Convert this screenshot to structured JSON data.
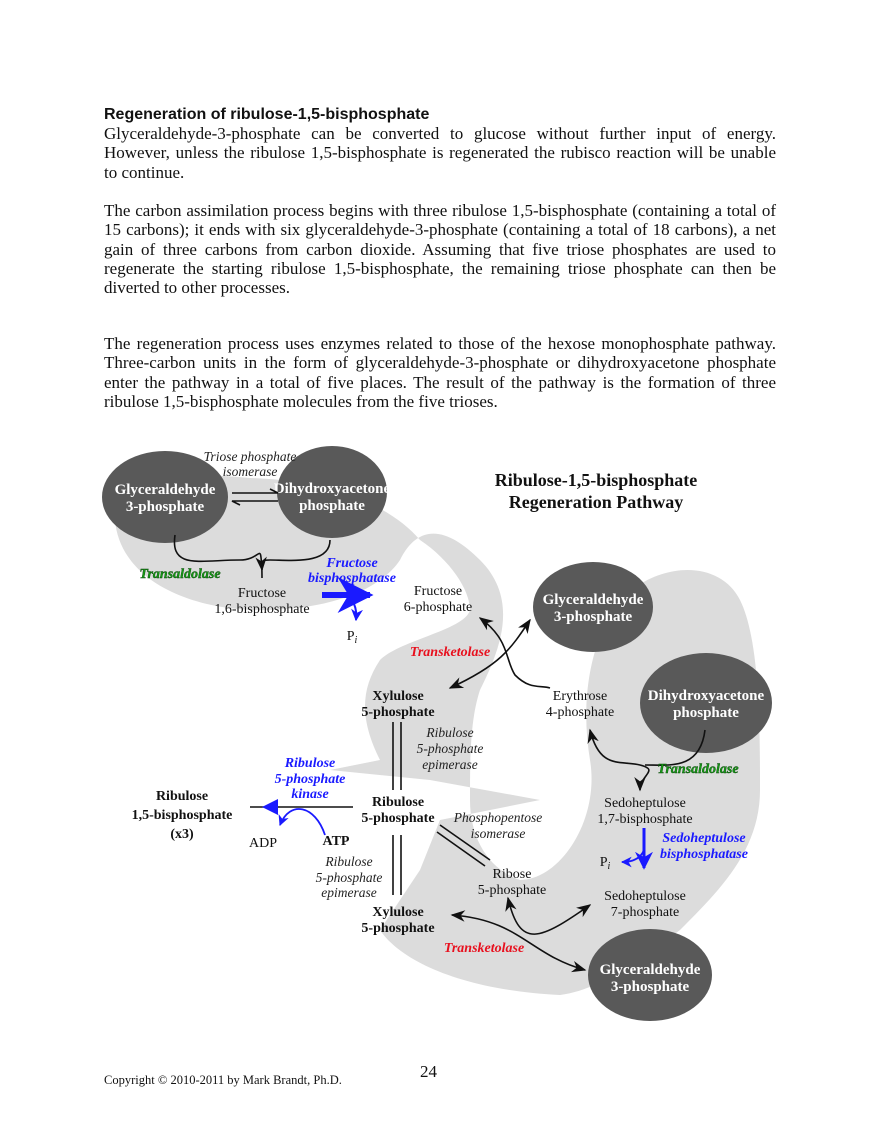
{
  "heading": "Regeneration of ribulose-1,5-bisphosphate",
  "paragraphs": [
    "Glyceraldehyde-3-phosphate can be converted to glucose without further input of energy. However, unless the ribulose 1,5-bisphosphate is regenerated the rubisco reaction will be unable to continue.",
    "The carbon assimilation process begins with three ribulose 1,5-bisphosphate (containing a total of 15 carbons); it ends with six glyceraldehyde-3-phosphate (containing a total of 18 carbons), a net gain of three carbons from carbon dioxide. Assuming that five triose phosphates are used to regenerate the starting ribulose 1,5-bisphosphate, the remaining triose phosphate can then be diverted to other processes.",
    "The regeneration process uses enzymes related to those of the hexose monophosphate pathway. Three-carbon units in the form of glyceraldehyde-3-phosphate or dihydroxyacetone phosphate enter the pathway in a total of five places. The result of the pathway is the formation of three ribulose 1,5-bisphosphate molecules from the five trioses."
  ],
  "diagram": {
    "title": [
      "Ribulose-1,5-bisphosphate",
      "Regeneration Pathway"
    ],
    "colors": {
      "ellipse": "#595959",
      "background": "#dcdcdc",
      "blue": "#1a1aff",
      "red": "#e8101e",
      "green": "#169a16"
    },
    "ellipses": {
      "g3p_top": [
        "Glyceraldehyde",
        "3-phosphate"
      ],
      "dhap_top": [
        "Dihydroxyacetone",
        "phosphate"
      ],
      "g3p_right": [
        "Glyceraldehyde",
        "3-phosphate"
      ],
      "dhap_right": [
        "Dihydroxyacetone",
        "phosphate"
      ],
      "g3p_bottom": [
        "Glyceraldehyde",
        "3-phosphate"
      ]
    },
    "molecules": {
      "f16bp": [
        "Fructose",
        "1,6-bisphosphate"
      ],
      "f6p": [
        "Fructose",
        "6-phosphate"
      ],
      "pi1": "P",
      "pi2": "P",
      "pi_sub": "i",
      "xu5p_top": [
        "Xylulose",
        "5-phosphate"
      ],
      "e4p": [
        "Erythrose",
        "4-phosphate"
      ],
      "ru5p": [
        "Ribulose",
        "5-phosphate"
      ],
      "rubp": [
        "Ribulose",
        "1,5-bisphosphate",
        "(x3)"
      ],
      "adp": "ADP",
      "atp": "ATP",
      "r5p": [
        "Ribose",
        "5-phosphate"
      ],
      "xu5p_bottom": [
        "Xylulose",
        "5-phosphate"
      ],
      "s17bp": [
        "Sedoheptulose",
        "1,7-bisphosphate"
      ],
      "s7p": [
        "Sedoheptulose",
        "7-phosphate"
      ]
    },
    "enzymes": {
      "tpi": [
        "Triose phosphate",
        "isomerase"
      ],
      "transaldolase1": "Transaldolase",
      "fbpase": [
        "Fructose",
        "bisphosphatase"
      ],
      "transketolase1": "Transketolase",
      "epimerase1": [
        "Ribulose",
        "5-phosphate",
        "epimerase"
      ],
      "prk": [
        "Ribulose",
        "5-phosphate",
        "kinase"
      ],
      "ppi": [
        "Phosphopentose",
        "isomerase"
      ],
      "epimerase2": [
        "Ribulose",
        "5-phosphate",
        "epimerase"
      ],
      "transaldolase2": "Transaldolase",
      "sbpase": [
        "Sedoheptulose",
        "bisphosphatase"
      ],
      "transketolase2": "Transketolase"
    }
  },
  "footer": {
    "copyright": "Copyright © 2010-2011 by Mark Brandt, Ph.D.",
    "page_number": "24"
  }
}
